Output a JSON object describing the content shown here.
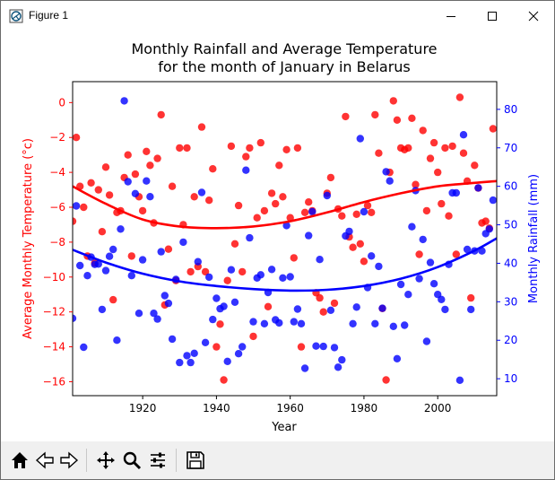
{
  "window": {
    "title": "Figure 1",
    "buttons": [
      "minimize",
      "maximize",
      "close"
    ]
  },
  "toolbar": {
    "buttons": [
      "home-icon",
      "back-icon",
      "forward-icon",
      "pan-icon",
      "zoom-icon",
      "configure-subplots-icon",
      "save-icon"
    ]
  },
  "colors": {
    "temperature": "#ff0000",
    "rainfall": "#0000ff"
  },
  "chart_data": {
    "type": "scatter",
    "title_line1": "Monthly Rainfall and Average Temperature",
    "title_line2": "for the month of January in Belarus",
    "xlabel": "Year",
    "ylabel_left": "Average Monthly Temperature (°c)",
    "ylabel_right": "Monthly Rainfall (mm)",
    "xlim": [
      1901,
      2016
    ],
    "ylim_left": [
      -16.8,
      1.2
    ],
    "ylim_right": [
      5.6,
      87.2
    ],
    "x_ticks": [
      1920,
      1940,
      1960,
      1980,
      2000
    ],
    "y_ticks_left": [
      0,
      -2,
      -4,
      -6,
      -8,
      -10,
      -12,
      -14,
      -16
    ],
    "y_ticks_right": [
      80,
      70,
      60,
      50,
      40,
      30,
      20,
      10
    ],
    "series": [
      {
        "axis": "left",
        "color": "#ff0000",
        "points": [
          [
            1901,
            -6.8
          ],
          [
            1902,
            -2.0
          ],
          [
            1903,
            -4.8
          ],
          [
            1904,
            -6.0
          ],
          [
            1905,
            -8.8
          ],
          [
            1906,
            -4.6
          ],
          [
            1907,
            -9.2
          ],
          [
            1908,
            -5.0
          ],
          [
            1909,
            -7.4
          ],
          [
            1910,
            -3.7
          ],
          [
            1911,
            -5.3
          ],
          [
            1912,
            -11.3
          ],
          [
            1913,
            -6.3
          ],
          [
            1914,
            -6.2
          ],
          [
            1915,
            -4.3
          ],
          [
            1916,
            -3.0
          ],
          [
            1917,
            -8.8
          ],
          [
            1918,
            -4.1
          ],
          [
            1919,
            -5.4
          ],
          [
            1920,
            -6.2
          ],
          [
            1921,
            -2.8
          ],
          [
            1922,
            -3.6
          ],
          [
            1923,
            -6.9
          ],
          [
            1924,
            -3.2
          ],
          [
            1925,
            -0.7
          ],
          [
            1926,
            -11.6
          ],
          [
            1927,
            -8.4
          ],
          [
            1928,
            -4.8
          ],
          [
            1929,
            -10.2
          ],
          [
            1930,
            -2.6
          ],
          [
            1931,
            -7.0
          ],
          [
            1932,
            -2.6
          ],
          [
            1933,
            -9.7
          ],
          [
            1934,
            -5.4
          ],
          [
            1935,
            -9.4
          ],
          [
            1936,
            -1.4
          ],
          [
            1937,
            -9.7
          ],
          [
            1938,
            -5.6
          ],
          [
            1939,
            -3.8
          ],
          [
            1940,
            -14.0
          ],
          [
            1941,
            -12.7
          ],
          [
            1942,
            -15.9
          ],
          [
            1943,
            -10.2
          ],
          [
            1944,
            -2.5
          ],
          [
            1945,
            -8.1
          ],
          [
            1946,
            -5.9
          ],
          [
            1947,
            -9.7
          ],
          [
            1948,
            -3.1
          ],
          [
            1949,
            -2.6
          ],
          [
            1950,
            -13.4
          ],
          [
            1951,
            -6.6
          ],
          [
            1952,
            -2.3
          ],
          [
            1953,
            -6.2
          ],
          [
            1954,
            -11.7
          ],
          [
            1955,
            -5.2
          ],
          [
            1956,
            -5.8
          ],
          [
            1957,
            -3.6
          ],
          [
            1958,
            -5.4
          ],
          [
            1959,
            -2.7
          ],
          [
            1960,
            -6.6
          ],
          [
            1961,
            -8.9
          ],
          [
            1962,
            -2.6
          ],
          [
            1963,
            -14.0
          ],
          [
            1964,
            -6.3
          ],
          [
            1965,
            -5.7
          ],
          [
            1966,
            -6.2
          ],
          [
            1967,
            -10.9
          ],
          [
            1968,
            -11.2
          ],
          [
            1969,
            -12.0
          ],
          [
            1970,
            -5.2
          ],
          [
            1971,
            -4.3
          ],
          [
            1972,
            -11.5
          ],
          [
            1973,
            -6.1
          ],
          [
            1974,
            -6.5
          ],
          [
            1975,
            -0.8
          ],
          [
            1976,
            -7.7
          ],
          [
            1977,
            -8.3
          ],
          [
            1978,
            -6.4
          ],
          [
            1979,
            -8.1
          ],
          [
            1980,
            -9.1
          ],
          [
            1981,
            -5.9
          ],
          [
            1982,
            -6.3
          ],
          [
            1983,
            -0.7
          ],
          [
            1984,
            -2.9
          ],
          [
            1985,
            -11.8
          ],
          [
            1986,
            -15.9
          ],
          [
            1987,
            -4.0
          ],
          [
            1988,
            0.1
          ],
          [
            1989,
            -1.0
          ],
          [
            1990,
            -2.6
          ],
          [
            1991,
            -2.7
          ],
          [
            1992,
            -2.6
          ],
          [
            1993,
            -0.9
          ],
          [
            1994,
            -4.7
          ],
          [
            1995,
            -8.7
          ],
          [
            1996,
            -1.6
          ],
          [
            1997,
            -6.2
          ],
          [
            1998,
            -3.2
          ],
          [
            1999,
            -2.3
          ],
          [
            2000,
            -4.0
          ],
          [
            2001,
            -5.8
          ],
          [
            2002,
            -2.6
          ],
          [
            2003,
            -6.5
          ],
          [
            2004,
            -2.5
          ],
          [
            2005,
            -8.7
          ],
          [
            2006,
            0.3
          ],
          [
            2007,
            -2.9
          ],
          [
            2008,
            -4.5
          ],
          [
            2009,
            -11.2
          ],
          [
            2010,
            -3.6
          ],
          [
            2011,
            -4.9
          ],
          [
            2012,
            -6.9
          ],
          [
            2013,
            -6.8
          ],
          [
            2014,
            -7.2
          ],
          [
            2015,
            -1.5
          ]
        ]
      },
      {
        "axis": "right",
        "color": "#0000ff",
        "points": [
          [
            1901,
            25.7
          ],
          [
            1902,
            54.9
          ],
          [
            1903,
            39.4
          ],
          [
            1904,
            18.2
          ],
          [
            1905,
            36.8
          ],
          [
            1906,
            41.6
          ],
          [
            1907,
            39.7
          ],
          [
            1908,
            39.8
          ],
          [
            1909,
            28.0
          ],
          [
            1910,
            38.1
          ],
          [
            1911,
            41.8
          ],
          [
            1912,
            43.6
          ],
          [
            1913,
            20.0
          ],
          [
            1914,
            48.9
          ],
          [
            1915,
            82.2
          ],
          [
            1916,
            61.2
          ],
          [
            1917,
            36.8
          ],
          [
            1918,
            58.1
          ],
          [
            1919,
            27.0
          ],
          [
            1920,
            40.9
          ],
          [
            1921,
            61.4
          ],
          [
            1922,
            57.3
          ],
          [
            1923,
            27.0
          ],
          [
            1924,
            25.5
          ],
          [
            1925,
            43.0
          ],
          [
            1926,
            31.6
          ],
          [
            1927,
            29.6
          ],
          [
            1928,
            20.3
          ],
          [
            1929,
            35.8
          ],
          [
            1930,
            14.2
          ],
          [
            1931,
            45.5
          ],
          [
            1932,
            16.0
          ],
          [
            1933,
            14.2
          ],
          [
            1934,
            16.6
          ],
          [
            1935,
            40.4
          ],
          [
            1936,
            58.4
          ],
          [
            1937,
            19.4
          ],
          [
            1938,
            36.4
          ],
          [
            1939,
            25.4
          ],
          [
            1940,
            30.9
          ],
          [
            1941,
            28.2
          ],
          [
            1942,
            28.8
          ],
          [
            1943,
            14.5
          ],
          [
            1944,
            38.3
          ],
          [
            1945,
            29.9
          ],
          [
            1946,
            16.5
          ],
          [
            1947,
            18.3
          ],
          [
            1948,
            64.2
          ],
          [
            1949,
            46.6
          ],
          [
            1950,
            24.8
          ],
          [
            1951,
            36.2
          ],
          [
            1952,
            37.0
          ],
          [
            1953,
            24.3
          ],
          [
            1954,
            32.4
          ],
          [
            1955,
            38.4
          ],
          [
            1956,
            25.3
          ],
          [
            1957,
            24.5
          ],
          [
            1958,
            36.2
          ],
          [
            1959,
            49.8
          ],
          [
            1960,
            36.5
          ],
          [
            1961,
            24.8
          ],
          [
            1962,
            28.1
          ],
          [
            1963,
            24.3
          ],
          [
            1964,
            12.7
          ],
          [
            1965,
            47.2
          ],
          [
            1966,
            53.4
          ],
          [
            1967,
            18.5
          ],
          [
            1968,
            41.0
          ],
          [
            1969,
            18.4
          ],
          [
            1970,
            57.6
          ],
          [
            1971,
            27.8
          ],
          [
            1972,
            18.1
          ],
          [
            1973,
            13.0
          ],
          [
            1974,
            14.9
          ],
          [
            1975,
            47.1
          ],
          [
            1976,
            48.3
          ],
          [
            1977,
            24.3
          ],
          [
            1978,
            28.6
          ],
          [
            1979,
            72.4
          ],
          [
            1980,
            53.4
          ],
          [
            1981,
            33.7
          ],
          [
            1982,
            41.9
          ],
          [
            1983,
            24.3
          ],
          [
            1984,
            39.2
          ],
          [
            1985,
            28.3
          ],
          [
            1986,
            63.8
          ],
          [
            1987,
            61.4
          ],
          [
            1988,
            23.6
          ],
          [
            1989,
            15.2
          ],
          [
            1990,
            34.5
          ],
          [
            1991,
            23.9
          ],
          [
            1992,
            31.9
          ],
          [
            1993,
            49.5
          ],
          [
            1994,
            58.9
          ],
          [
            1995,
            36.0
          ],
          [
            1996,
            46.2
          ],
          [
            1997,
            19.7
          ],
          [
            1998,
            40.2
          ],
          [
            1999,
            34.7
          ],
          [
            2000,
            31.9
          ],
          [
            2001,
            30.6
          ],
          [
            2002,
            28.0
          ],
          [
            2003,
            39.7
          ],
          [
            2004,
            58.3
          ],
          [
            2005,
            58.3
          ],
          [
            2006,
            9.6
          ],
          [
            2007,
            73.4
          ],
          [
            2008,
            43.6
          ],
          [
            2009,
            28.0
          ],
          [
            2010,
            43.2
          ],
          [
            2011,
            59.6
          ],
          [
            2012,
            43.2
          ],
          [
            2013,
            47.7
          ],
          [
            2014,
            48.9
          ],
          [
            2015,
            56.4
          ]
        ]
      },
      {
        "axis": "left",
        "kind": "fit-curve",
        "color": "#ff0000",
        "x": [
          1901,
          1910,
          1920,
          1930,
          1940,
          1950,
          1960,
          1970,
          1980,
          1990,
          2000,
          2010,
          2016
        ],
        "y": [
          -4.8,
          -5.8,
          -6.7,
          -7.1,
          -7.2,
          -7.1,
          -6.8,
          -6.3,
          -5.7,
          -5.2,
          -4.8,
          -4.6,
          -4.5
        ]
      },
      {
        "axis": "right",
        "kind": "fit-curve",
        "color": "#0000ff",
        "x": [
          1901,
          1910,
          1920,
          1930,
          1940,
          1950,
          1960,
          1970,
          1980,
          1990,
          2000,
          2010,
          2016
        ],
        "y": [
          43.5,
          40.2,
          37.3,
          35.3,
          34.1,
          33.3,
          32.9,
          33.1,
          34.1,
          36.0,
          39.0,
          43.3,
          46.5
        ]
      }
    ]
  }
}
